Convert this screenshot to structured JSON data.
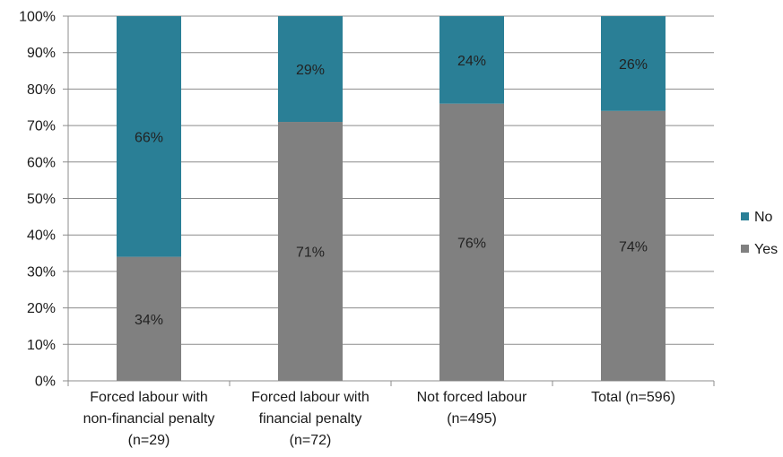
{
  "chart_data": {
    "type": "bar",
    "stacked": true,
    "percent": true,
    "categories": [
      [
        "Forced labour with",
        "non-financial penalty",
        "(n=29)"
      ],
      [
        "Forced labour with",
        "financial penalty",
        "(n=72)"
      ],
      [
        "Not forced labour",
        "(n=495)"
      ],
      [
        "Total (n=596)"
      ]
    ],
    "series": [
      {
        "name": "Yes",
        "values": [
          34,
          71,
          76,
          74
        ],
        "labels": [
          "34%",
          "71%",
          "76%",
          "74%"
        ],
        "color": "#808080"
      },
      {
        "name": "No",
        "values": [
          66,
          29,
          24,
          26
        ],
        "labels": [
          "66%",
          "29%",
          "24%",
          "26%"
        ],
        "color": "#2a7f96"
      }
    ],
    "ylim": [
      0,
      100
    ],
    "yticks": [
      "0%",
      "10%",
      "20%",
      "30%",
      "40%",
      "50%",
      "60%",
      "70%",
      "80%",
      "90%",
      "100%"
    ],
    "grid": true,
    "legend_position": "right",
    "legend_order": [
      "No",
      "Yes"
    ]
  }
}
